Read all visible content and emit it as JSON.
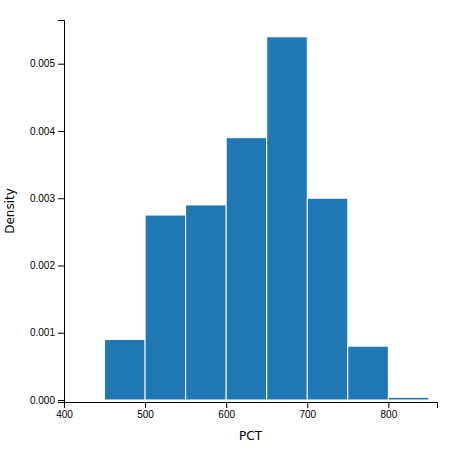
{
  "chart_data": {
    "type": "histogram",
    "bins": [
      450,
      500,
      550,
      600,
      650,
      700,
      750,
      800,
      850
    ],
    "values": [
      0.0009,
      0.00275,
      0.0029,
      0.0039,
      0.0054,
      0.003,
      0.0008,
      4e-05
    ],
    "xlim": [
      400,
      860
    ],
    "ylim": [
      -3e-05,
      0.00565
    ],
    "xticks": [
      400,
      500,
      600,
      700,
      800
    ],
    "yticks": [
      {
        "value": 0,
        "label": "0.000"
      },
      0.001,
      0.002,
      0.003,
      0.004,
      0.005
    ],
    "xlabel": "PCT",
    "ylabel": "Density",
    "grid": false
  }
}
